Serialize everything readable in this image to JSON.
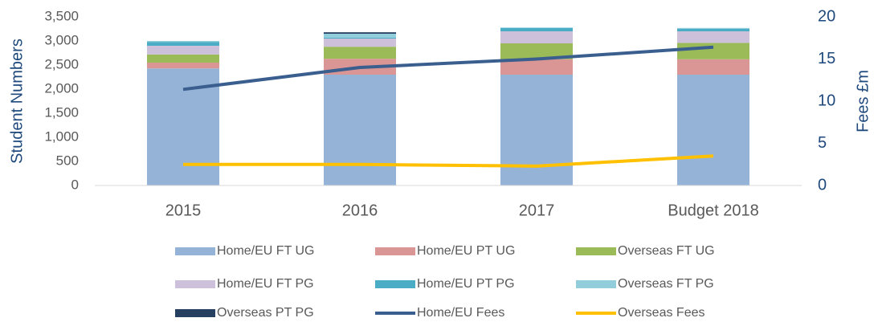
{
  "chart_data": {
    "type": "bar",
    "stacked": true,
    "categories": [
      "2015",
      "2016",
      "2017",
      "Budget 2018"
    ],
    "ylabel": "Student Numbers",
    "y2label": "Fees £m",
    "ylim": [
      0,
      3500
    ],
    "yticks": [
      0,
      {
        "value": 500,
        "label": "500"
      },
      {
        "value": 1000,
        "label": "1,000"
      },
      {
        "value": 1500,
        "label": "1,500"
      },
      {
        "value": 2000,
        "label": "2,000"
      },
      {
        "value": 2500,
        "label": "2,500"
      },
      {
        "value": 3000,
        "label": "3,000"
      },
      {
        "value": 3500,
        "label": "3,500"
      }
    ],
    "y2lim": [
      0,
      20
    ],
    "y2ticks": [
      0,
      5,
      10,
      15,
      20
    ],
    "grid": false,
    "legend": "bottom",
    "series": [
      {
        "name": "Home/EU FT UG",
        "color": "#95b3d7",
        "values": [
          2430,
          2300,
          2300,
          2300
        ]
      },
      {
        "name": "Home/EU PT UG",
        "color": "#da9694",
        "values": [
          120,
          330,
          320,
          320
        ]
      },
      {
        "name": "Overseas FT UG",
        "color": "#9bbb59",
        "values": [
          170,
          250,
          330,
          340
        ]
      },
      {
        "name": "Home/EU FT PG",
        "color": "#ccc0da",
        "values": [
          180,
          170,
          250,
          240
        ]
      },
      {
        "name": "Home/EU PT PG",
        "color": "#4bacc6",
        "values": [
          80,
          20,
          70,
          50
        ]
      },
      {
        "name": "Overseas FT PG",
        "color": "#92cddc",
        "values": [
          20,
          80,
          10,
          20
        ]
      },
      {
        "name": "Overseas PT PG",
        "color": "#254061",
        "values": [
          0,
          30,
          0,
          0
        ]
      },
      {
        "name": "Home/EU Fees",
        "type": "line",
        "axis": "y2",
        "color": "#3a5f8f",
        "values": [
          11.4,
          14.0,
          15.0,
          16.4
        ]
      },
      {
        "name": "Overseas Fees",
        "type": "line",
        "axis": "y2",
        "color": "#ffc000",
        "values": [
          2.5,
          2.5,
          2.3,
          3.5
        ]
      }
    ]
  }
}
